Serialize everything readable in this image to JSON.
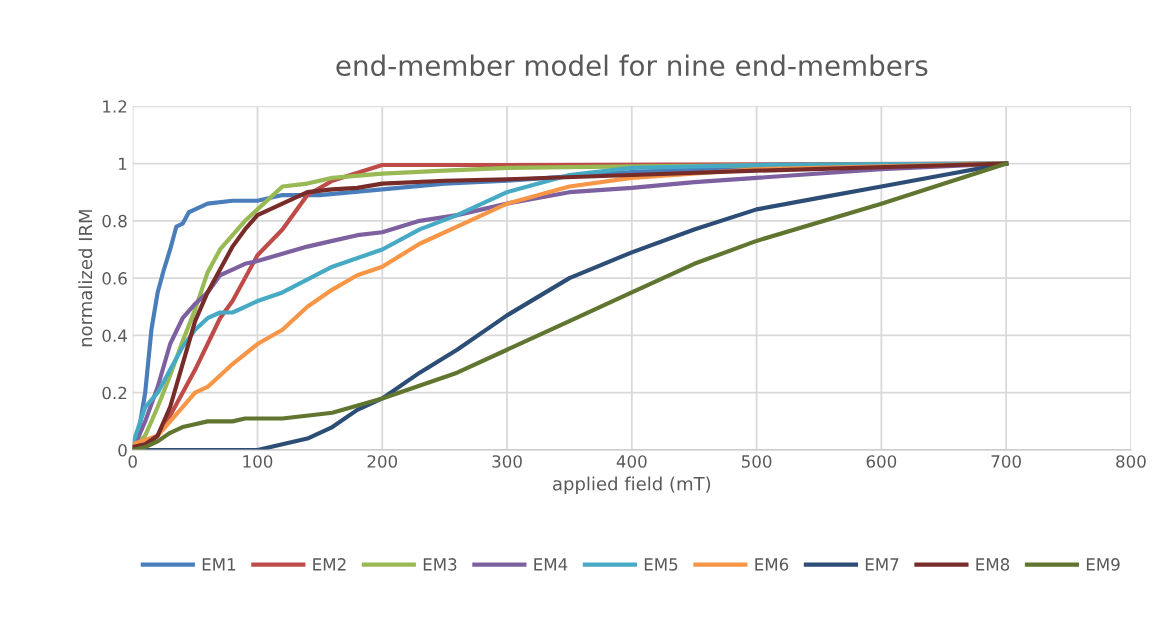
{
  "chart_data": {
    "type": "line",
    "title": "end-member model for nine end-members",
    "xlabel": "applied field (mT)",
    "ylabel": "normalized IRM",
    "xlim": [
      0,
      800
    ],
    "xticks": [
      0,
      100,
      200,
      300,
      400,
      500,
      600,
      700,
      800
    ],
    "ylim": [
      0,
      1.2
    ],
    "yticks": [
      {
        "value": 0,
        "label": "0"
      },
      0.2,
      0.4,
      0.6,
      0.8,
      {
        "value": 1,
        "label": "1"
      },
      1.2
    ],
    "grid": true,
    "legend": "bottom",
    "marker": "none",
    "line_style": "solid",
    "series": [
      {
        "name": "EM1",
        "color": "#4a7ebb",
        "x": [
          0,
          5,
          10,
          15,
          20,
          25,
          30,
          35,
          40,
          45,
          50,
          60,
          80,
          100,
          120,
          150,
          200,
          250,
          300,
          400,
          500,
          700
        ],
        "values": [
          0,
          0.07,
          0.2,
          0.42,
          0.55,
          0.63,
          0.7,
          0.78,
          0.79,
          0.83,
          0.84,
          0.86,
          0.87,
          0.87,
          0.89,
          0.89,
          0.91,
          0.93,
          0.94,
          0.97,
          0.99,
          1
        ]
      },
      {
        "name": "EM2",
        "color": "#be4b48",
        "x": [
          0,
          10,
          20,
          30,
          40,
          50,
          60,
          70,
          80,
          90,
          100,
          120,
          140,
          160,
          200,
          300,
          700
        ],
        "values": [
          0.01,
          0.01,
          0.05,
          0.12,
          0.2,
          0.28,
          0.37,
          0.46,
          0.52,
          0.6,
          0.68,
          0.77,
          0.89,
          0.94,
          0.995,
          0.995,
          1
        ]
      },
      {
        "name": "EM3",
        "color": "#98b954",
        "x": [
          0,
          10,
          20,
          30,
          40,
          50,
          60,
          70,
          80,
          90,
          100,
          120,
          140,
          160,
          200,
          250,
          300,
          400,
          700
        ],
        "values": [
          0.01,
          0.05,
          0.15,
          0.26,
          0.38,
          0.49,
          0.62,
          0.7,
          0.75,
          0.8,
          0.84,
          0.92,
          0.93,
          0.95,
          0.965,
          0.975,
          0.985,
          0.99,
          1
        ]
      },
      {
        "name": "EM4",
        "color": "#7d60a0",
        "x": [
          0,
          10,
          20,
          30,
          40,
          50,
          60,
          70,
          80,
          90,
          100,
          140,
          160,
          180,
          200,
          230,
          260,
          300,
          350,
          400,
          450,
          500,
          600,
          700
        ],
        "values": [
          0,
          0.1,
          0.22,
          0.37,
          0.46,
          0.51,
          0.55,
          0.61,
          0.63,
          0.65,
          0.66,
          0.71,
          0.73,
          0.75,
          0.76,
          0.8,
          0.82,
          0.86,
          0.9,
          0.915,
          0.935,
          0.95,
          0.98,
          1
        ]
      },
      {
        "name": "EM5",
        "color": "#46aac5",
        "x": [
          0,
          10,
          20,
          30,
          40,
          50,
          60,
          70,
          80,
          90,
          100,
          120,
          160,
          200,
          230,
          260,
          300,
          350,
          400,
          500,
          700
        ],
        "values": [
          0.02,
          0.15,
          0.2,
          0.28,
          0.36,
          0.42,
          0.46,
          0.48,
          0.48,
          0.5,
          0.52,
          0.55,
          0.64,
          0.7,
          0.77,
          0.82,
          0.9,
          0.96,
          0.985,
          0.995,
          1
        ]
      },
      {
        "name": "EM6",
        "color": "#f79646",
        "x": [
          0,
          20,
          30,
          40,
          50,
          60,
          70,
          80,
          100,
          120,
          140,
          160,
          180,
          200,
          230,
          260,
          300,
          350,
          400,
          500,
          700
        ],
        "values": [
          0.02,
          0.05,
          0.1,
          0.15,
          0.2,
          0.22,
          0.26,
          0.3,
          0.37,
          0.42,
          0.5,
          0.56,
          0.61,
          0.64,
          0.72,
          0.78,
          0.86,
          0.92,
          0.95,
          0.98,
          1
        ]
      },
      {
        "name": "EM7",
        "color": "#2c4d75",
        "x": [
          0,
          100,
          120,
          140,
          160,
          180,
          200,
          230,
          260,
          300,
          350,
          400,
          450,
          500,
          550,
          600,
          650,
          700
        ],
        "values": [
          0,
          0,
          0.02,
          0.04,
          0.08,
          0.14,
          0.18,
          0.27,
          0.35,
          0.47,
          0.6,
          0.69,
          0.77,
          0.84,
          0.88,
          0.92,
          0.96,
          1
        ]
      },
      {
        "name": "EM8",
        "color": "#772c2a",
        "x": [
          0,
          10,
          20,
          30,
          40,
          50,
          60,
          70,
          80,
          90,
          100,
          120,
          140,
          160,
          180,
          200,
          250,
          300,
          400,
          500,
          700
        ],
        "values": [
          0.01,
          0.02,
          0.05,
          0.15,
          0.3,
          0.45,
          0.55,
          0.63,
          0.71,
          0.77,
          0.82,
          0.86,
          0.9,
          0.91,
          0.915,
          0.93,
          0.94,
          0.945,
          0.96,
          0.975,
          1
        ]
      },
      {
        "name": "EM9",
        "color": "#5f7530",
        "x": [
          0,
          10,
          20,
          30,
          40,
          50,
          60,
          80,
          90,
          120,
          160,
          200,
          260,
          300,
          350,
          400,
          450,
          500,
          600,
          700
        ],
        "values": [
          0,
          0.01,
          0.03,
          0.06,
          0.08,
          0.09,
          0.1,
          0.1,
          0.11,
          0.11,
          0.13,
          0.18,
          0.27,
          0.35,
          0.45,
          0.55,
          0.65,
          0.73,
          0.86,
          1
        ]
      }
    ]
  }
}
